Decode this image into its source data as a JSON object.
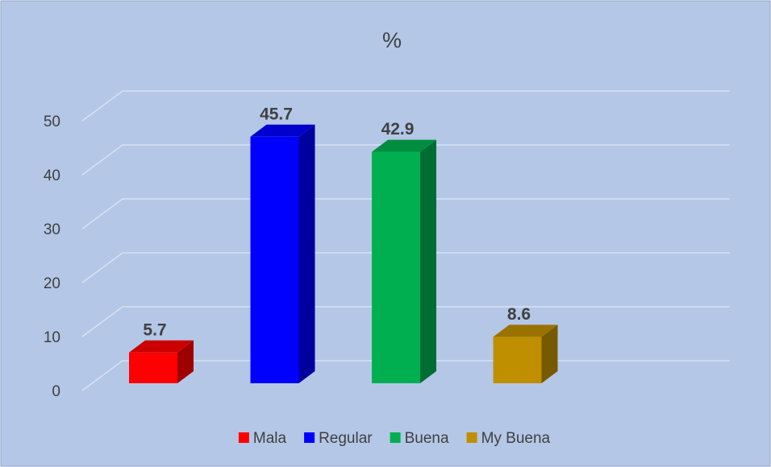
{
  "chart_data": {
    "type": "bar3d",
    "title": "%",
    "series": [
      {
        "name": "Mala",
        "color": "#ff0000",
        "values": [
          5.7
        ]
      },
      {
        "name": "Regular",
        "color": "#0000ff",
        "values": [
          45.7
        ]
      },
      {
        "name": "Buena",
        "color": "#00b050",
        "values": [
          42.9
        ]
      },
      {
        "name": "My Buena",
        "color": "#bf8f00",
        "values": [
          8.6
        ]
      }
    ],
    "ylim": [
      0,
      50
    ],
    "yticks": [
      0,
      10,
      20,
      30,
      40,
      50
    ],
    "grid": true,
    "legend": "bottom"
  }
}
